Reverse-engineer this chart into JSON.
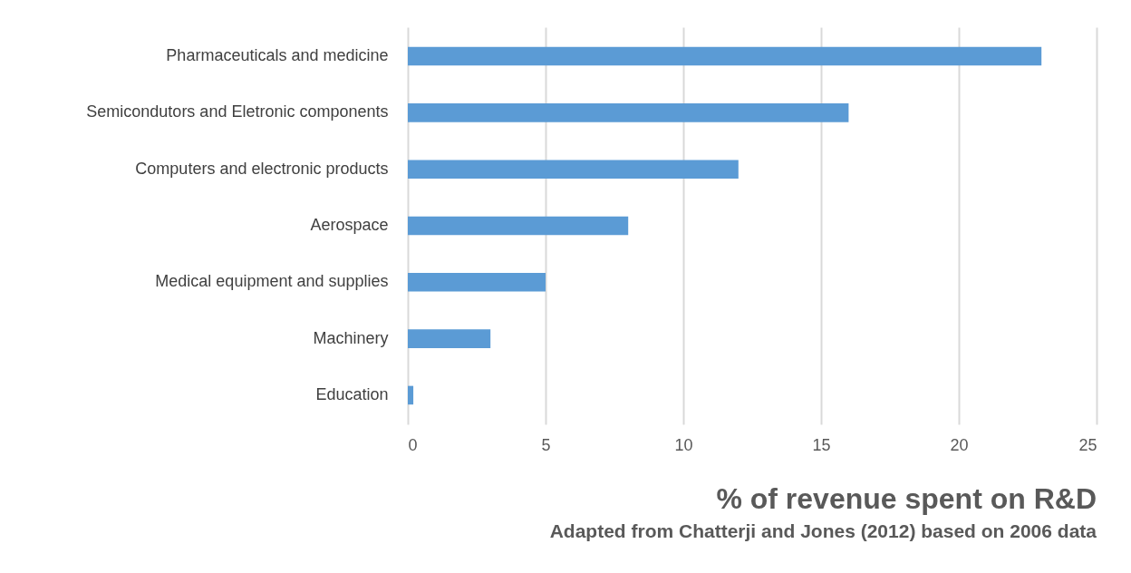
{
  "chart_data": {
    "type": "bar",
    "orientation": "horizontal",
    "title": "% of revenue spent on R&D",
    "subtitle": "Adapted from Chatterji and Jones (2012) based on 2006 data",
    "categories": [
      "Pharmaceuticals and medicine",
      "Semicondutors and Eletronic components",
      "Computers and electronic products",
      "Aerospace",
      "Medical equipment and supplies",
      "Machinery",
      "Education"
    ],
    "values": [
      23,
      16,
      12,
      8,
      5,
      3,
      0.2
    ],
    "color": "#5b9bd5",
    "xlim": [
      0,
      25
    ],
    "xticks": [
      0,
      5,
      10,
      15,
      20,
      25
    ],
    "grid": "x"
  }
}
